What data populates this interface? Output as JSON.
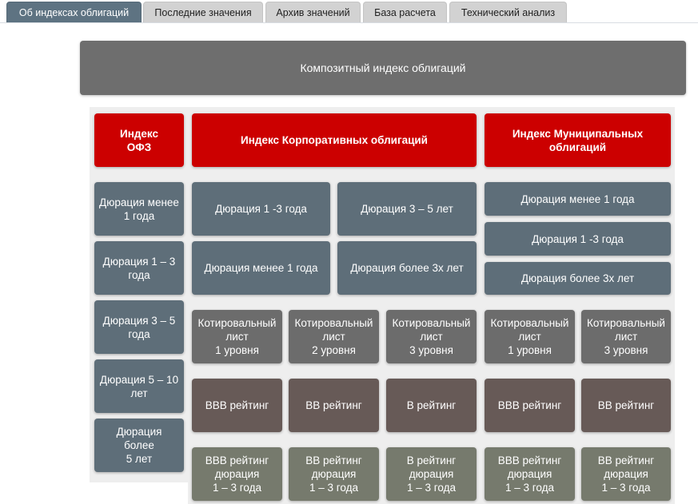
{
  "tabs": [
    {
      "label": "Об индексах облигаций",
      "active": true
    },
    {
      "label": "Последние значения",
      "active": false
    },
    {
      "label": "Архив значений",
      "active": false
    },
    {
      "label": "База расчета",
      "active": false
    },
    {
      "label": "Технический анализ",
      "active": false
    }
  ],
  "composite": {
    "label": "Композитный индекс облигаций"
  },
  "ofz": {
    "header": "Индекс\nОФЗ",
    "items": [
      "Дюрация менее\n1 года",
      "Дюрация 1 – 3\nгода",
      "Дюрация 3 – 5\nгода",
      "Дюрация 5 – 10\nлет",
      "Дюрация\nболее\n5 лет"
    ]
  },
  "corporate": {
    "header": "Индекс Корпоративных облигаций",
    "durations": [
      "Дюрация 1 -3 года",
      "Дюрация 3 – 5 лет",
      "Дюрация менее 1 года",
      "Дюрация более 3х лет"
    ],
    "listings": [
      "Котировальный\nлист\n1 уровня",
      "Котировальный\nлист\n2 уровня",
      "Котировальный\nлист\n3 уровня"
    ],
    "ratings": [
      "BBB рейтинг",
      "BB рейтинг",
      "B рейтинг"
    ],
    "rating_durations": [
      "BBB рейтинг\nдюрация\n1 – 3 года",
      "BB рейтинг\nдюрация\n1 – 3 года",
      "B рейтинг\nдюрация\n1 – 3 года"
    ]
  },
  "municipal": {
    "header": "Индекс Муниципальных\nоблигаций",
    "durations": [
      "Дюрация менее 1 года",
      "Дюрация 1 -3 года",
      "Дюрация более 3х лет"
    ],
    "listings": [
      "Котировальный\nлист\n1 уровня",
      "Котировальный\nлист\n3 уровня"
    ],
    "ratings": [
      "BBB рейтинг",
      "BB рейтинг"
    ],
    "rating_durations": [
      "BBB рейтинг\nдюрация\n1 – 3 года",
      "BB рейтинг\nдюрация\n1 – 3 года"
    ]
  },
  "colors": {
    "tab_active": "#5e7382",
    "tab_inactive": "#d2d2d2",
    "composite": "#6e6e6e",
    "index_header": "#cc0000",
    "duration": "#5e6e79",
    "listing": "#6c6c6c",
    "rating": "#675a57",
    "rating_duration": "#767a6d"
  }
}
